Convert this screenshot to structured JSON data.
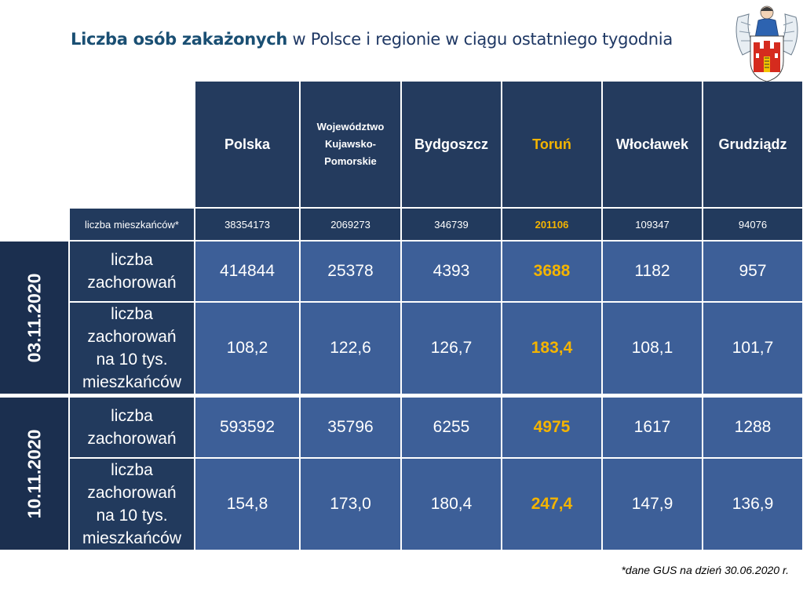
{
  "title": {
    "bold": "Liczba osób zakażonych",
    "rest": " w Polsce i regionie w ciągu ostatniego tygodnia"
  },
  "columns": [
    "Polska",
    "Województwo Kujawsko-Pomorskie",
    "Bydgoszcz",
    "Toruń",
    "Włocławek",
    "Grudziądz"
  ],
  "population": {
    "label": "liczba mieszkańców*",
    "values": [
      "38354173",
      "2069273",
      "346739",
      "201106",
      "109347",
      "94076"
    ]
  },
  "groups": [
    {
      "date": "03.11.2020",
      "rows": [
        {
          "label": "liczba zachorowań",
          "values": [
            "414844",
            "25378",
            "4393",
            "3688",
            "1182",
            "957"
          ]
        },
        {
          "label": "liczba zachorowań na 10 tys. mieszkańców",
          "values": [
            "108,2",
            "122,6",
            "126,7",
            "183,4",
            "108,1",
            "101,7"
          ]
        }
      ]
    },
    {
      "date": "10.11.2020",
      "rows": [
        {
          "label": "liczba zachorowań",
          "values": [
            "593592",
            "35796",
            "6255",
            "4975",
            "1617",
            "1288"
          ]
        },
        {
          "label": "liczba zachorowań na 10 tys. mieszkańców",
          "values": [
            "154,8",
            "173,0",
            "180,4",
            "247,4",
            "147,9",
            "136,9"
          ]
        }
      ]
    }
  ],
  "footnote": "*dane GUS na dzień 30.06.2020 r.",
  "colors": {
    "header_bg": "#243b5e",
    "data_bg": "#3d5f98",
    "highlight": "#f4b400"
  }
}
